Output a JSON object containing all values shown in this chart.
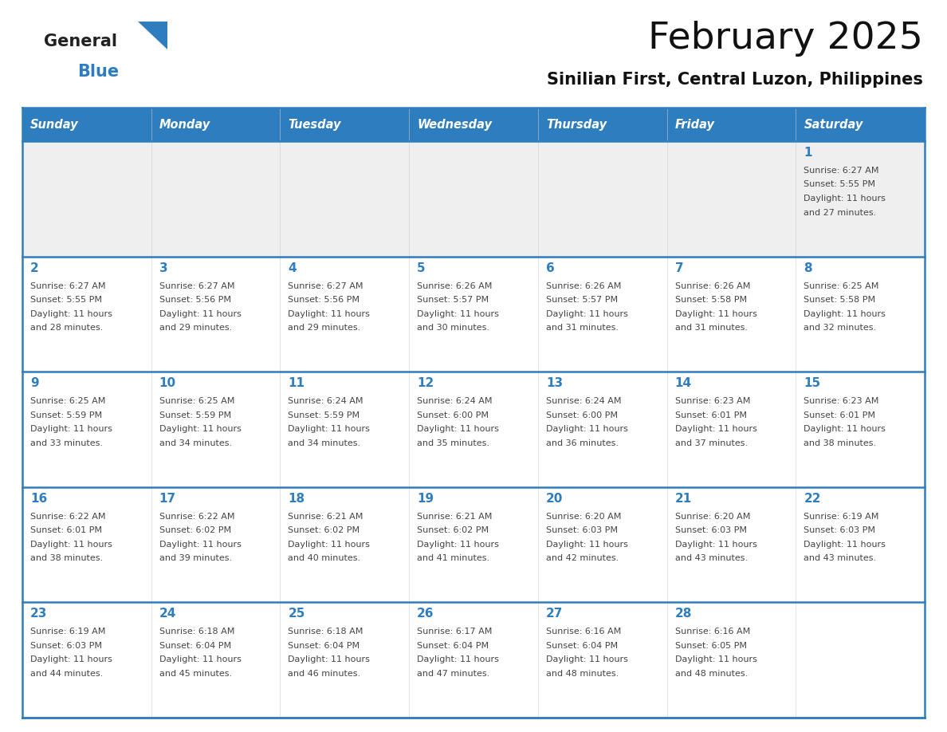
{
  "title": "February 2025",
  "subtitle": "Sinilian First, Central Luzon, Philippines",
  "header_bg": "#2E7DBE",
  "header_text_color": "#FFFFFF",
  "cell_border_color": "#2E7DBE",
  "day_num_color": "#2E7DBE",
  "text_color": "#444444",
  "bg_color": "#FFFFFF",
  "alt_row_bg": "#EFEFEF",
  "days_of_week": [
    "Sunday",
    "Monday",
    "Tuesday",
    "Wednesday",
    "Thursday",
    "Friday",
    "Saturday"
  ],
  "calendar_data": [
    [
      {
        "day": "",
        "sunrise": "",
        "sunset": "",
        "daylight": ""
      },
      {
        "day": "",
        "sunrise": "",
        "sunset": "",
        "daylight": ""
      },
      {
        "day": "",
        "sunrise": "",
        "sunset": "",
        "daylight": ""
      },
      {
        "day": "",
        "sunrise": "",
        "sunset": "",
        "daylight": ""
      },
      {
        "day": "",
        "sunrise": "",
        "sunset": "",
        "daylight": ""
      },
      {
        "day": "",
        "sunrise": "",
        "sunset": "",
        "daylight": ""
      },
      {
        "day": "1",
        "sunrise": "6:27 AM",
        "sunset": "5:55 PM",
        "daylight": "11 hours and 27 minutes."
      }
    ],
    [
      {
        "day": "2",
        "sunrise": "6:27 AM",
        "sunset": "5:55 PM",
        "daylight": "11 hours and 28 minutes."
      },
      {
        "day": "3",
        "sunrise": "6:27 AM",
        "sunset": "5:56 PM",
        "daylight": "11 hours and 29 minutes."
      },
      {
        "day": "4",
        "sunrise": "6:27 AM",
        "sunset": "5:56 PM",
        "daylight": "11 hours and 29 minutes."
      },
      {
        "day": "5",
        "sunrise": "6:26 AM",
        "sunset": "5:57 PM",
        "daylight": "11 hours and 30 minutes."
      },
      {
        "day": "6",
        "sunrise": "6:26 AM",
        "sunset": "5:57 PM",
        "daylight": "11 hours and 31 minutes."
      },
      {
        "day": "7",
        "sunrise": "6:26 AM",
        "sunset": "5:58 PM",
        "daylight": "11 hours and 31 minutes."
      },
      {
        "day": "8",
        "sunrise": "6:25 AM",
        "sunset": "5:58 PM",
        "daylight": "11 hours and 32 minutes."
      }
    ],
    [
      {
        "day": "9",
        "sunrise": "6:25 AM",
        "sunset": "5:59 PM",
        "daylight": "11 hours and 33 minutes."
      },
      {
        "day": "10",
        "sunrise": "6:25 AM",
        "sunset": "5:59 PM",
        "daylight": "11 hours and 34 minutes."
      },
      {
        "day": "11",
        "sunrise": "6:24 AM",
        "sunset": "5:59 PM",
        "daylight": "11 hours and 34 minutes."
      },
      {
        "day": "12",
        "sunrise": "6:24 AM",
        "sunset": "6:00 PM",
        "daylight": "11 hours and 35 minutes."
      },
      {
        "day": "13",
        "sunrise": "6:24 AM",
        "sunset": "6:00 PM",
        "daylight": "11 hours and 36 minutes."
      },
      {
        "day": "14",
        "sunrise": "6:23 AM",
        "sunset": "6:01 PM",
        "daylight": "11 hours and 37 minutes."
      },
      {
        "day": "15",
        "sunrise": "6:23 AM",
        "sunset": "6:01 PM",
        "daylight": "11 hours and 38 minutes."
      }
    ],
    [
      {
        "day": "16",
        "sunrise": "6:22 AM",
        "sunset": "6:01 PM",
        "daylight": "11 hours and 38 minutes."
      },
      {
        "day": "17",
        "sunrise": "6:22 AM",
        "sunset": "6:02 PM",
        "daylight": "11 hours and 39 minutes."
      },
      {
        "day": "18",
        "sunrise": "6:21 AM",
        "sunset": "6:02 PM",
        "daylight": "11 hours and 40 minutes."
      },
      {
        "day": "19",
        "sunrise": "6:21 AM",
        "sunset": "6:02 PM",
        "daylight": "11 hours and 41 minutes."
      },
      {
        "day": "20",
        "sunrise": "6:20 AM",
        "sunset": "6:03 PM",
        "daylight": "11 hours and 42 minutes."
      },
      {
        "day": "21",
        "sunrise": "6:20 AM",
        "sunset": "6:03 PM",
        "daylight": "11 hours and 43 minutes."
      },
      {
        "day": "22",
        "sunrise": "6:19 AM",
        "sunset": "6:03 PM",
        "daylight": "11 hours and 43 minutes."
      }
    ],
    [
      {
        "day": "23",
        "sunrise": "6:19 AM",
        "sunset": "6:03 PM",
        "daylight": "11 hours and 44 minutes."
      },
      {
        "day": "24",
        "sunrise": "6:18 AM",
        "sunset": "6:04 PM",
        "daylight": "11 hours and 45 minutes."
      },
      {
        "day": "25",
        "sunrise": "6:18 AM",
        "sunset": "6:04 PM",
        "daylight": "11 hours and 46 minutes."
      },
      {
        "day": "26",
        "sunrise": "6:17 AM",
        "sunset": "6:04 PM",
        "daylight": "11 hours and 47 minutes."
      },
      {
        "day": "27",
        "sunrise": "6:16 AM",
        "sunset": "6:04 PM",
        "daylight": "11 hours and 48 minutes."
      },
      {
        "day": "28",
        "sunrise": "6:16 AM",
        "sunset": "6:05 PM",
        "daylight": "11 hours and 48 minutes."
      },
      {
        "day": "",
        "sunrise": "",
        "sunset": "",
        "daylight": ""
      }
    ]
  ],
  "logo_general_color": "#222222",
  "logo_blue_color": "#2E7DBE",
  "logo_triangle_color": "#2E7DBE"
}
